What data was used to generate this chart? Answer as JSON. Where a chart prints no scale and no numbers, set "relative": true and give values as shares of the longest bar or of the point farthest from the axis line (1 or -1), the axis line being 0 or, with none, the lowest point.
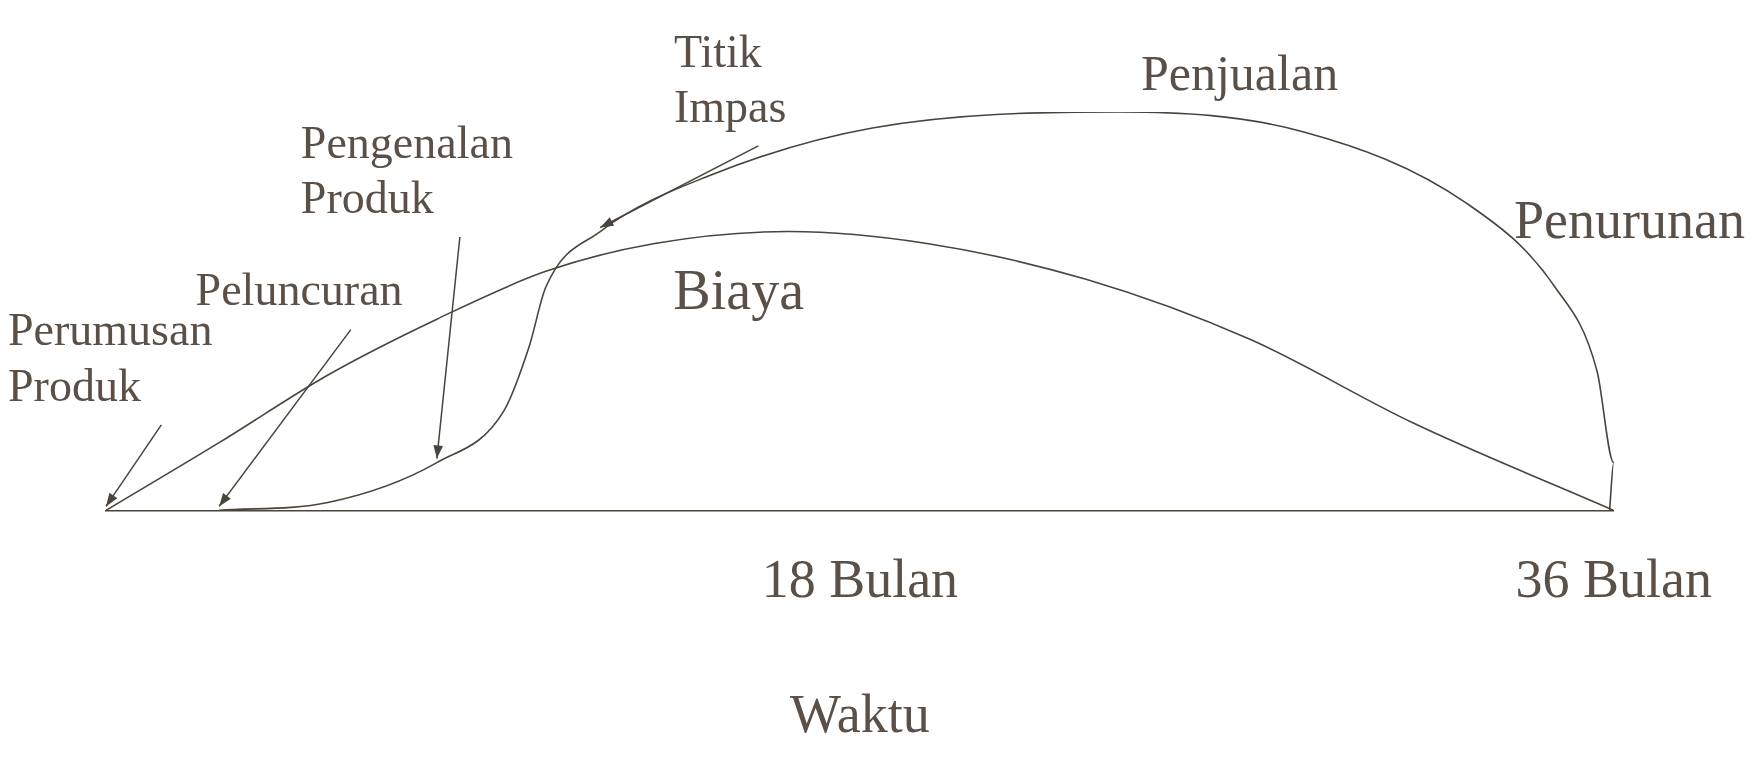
{
  "chart_data": {
    "type": "line",
    "relative": true,
    "xlabel": "Waktu",
    "xlim": [
      0,
      36
    ],
    "xticks": [
      {
        "value": 18,
        "label": "18 Bulan"
      },
      {
        "value": 36,
        "label": "36 Bulan"
      }
    ],
    "grid": false,
    "marker": "none",
    "line_style": "solid",
    "series": [
      {
        "name": "Penjualan",
        "color": "#4a443c",
        "x": [
          2.7,
          5.3,
          7.9,
          9.5,
          10.1,
          10.5,
          11.8,
          14.4,
          18.3,
          24.2,
          28.6,
          32.5,
          34.6,
          35.6,
          36,
          35.9
        ],
        "values": [
          0,
          0.02,
          0.12,
          0.25,
          0.41,
          0.56,
          0.7,
          0.84,
          0.96,
          1,
          0.95,
          0.77,
          0.56,
          0.35,
          0.12,
          0
        ]
      },
      {
        "name": "Biaya",
        "color": "#4a443c",
        "x": [
          0,
          2.7,
          5.3,
          7.9,
          10.5,
          13.1,
          16.3,
          19.6,
          23.4,
          27.3,
          31.2,
          36
        ],
        "values": [
          0,
          0.17,
          0.34,
          0.48,
          0.6,
          0.67,
          0.7,
          0.67,
          0.58,
          0.43,
          0.22,
          0
        ]
      }
    ],
    "annotations": [
      {
        "text": "Perumusan Produk",
        "x": 0,
        "y": 0
      },
      {
        "text": "Peluncuran",
        "x": 2.7,
        "y": 0
      },
      {
        "text": "Pengenalan Produk",
        "x": 7.9,
        "y": 0.12
      },
      {
        "text": "Titik Impas",
        "x": 11.8,
        "y": 0.7
      },
      "Penurunan"
    ]
  }
}
